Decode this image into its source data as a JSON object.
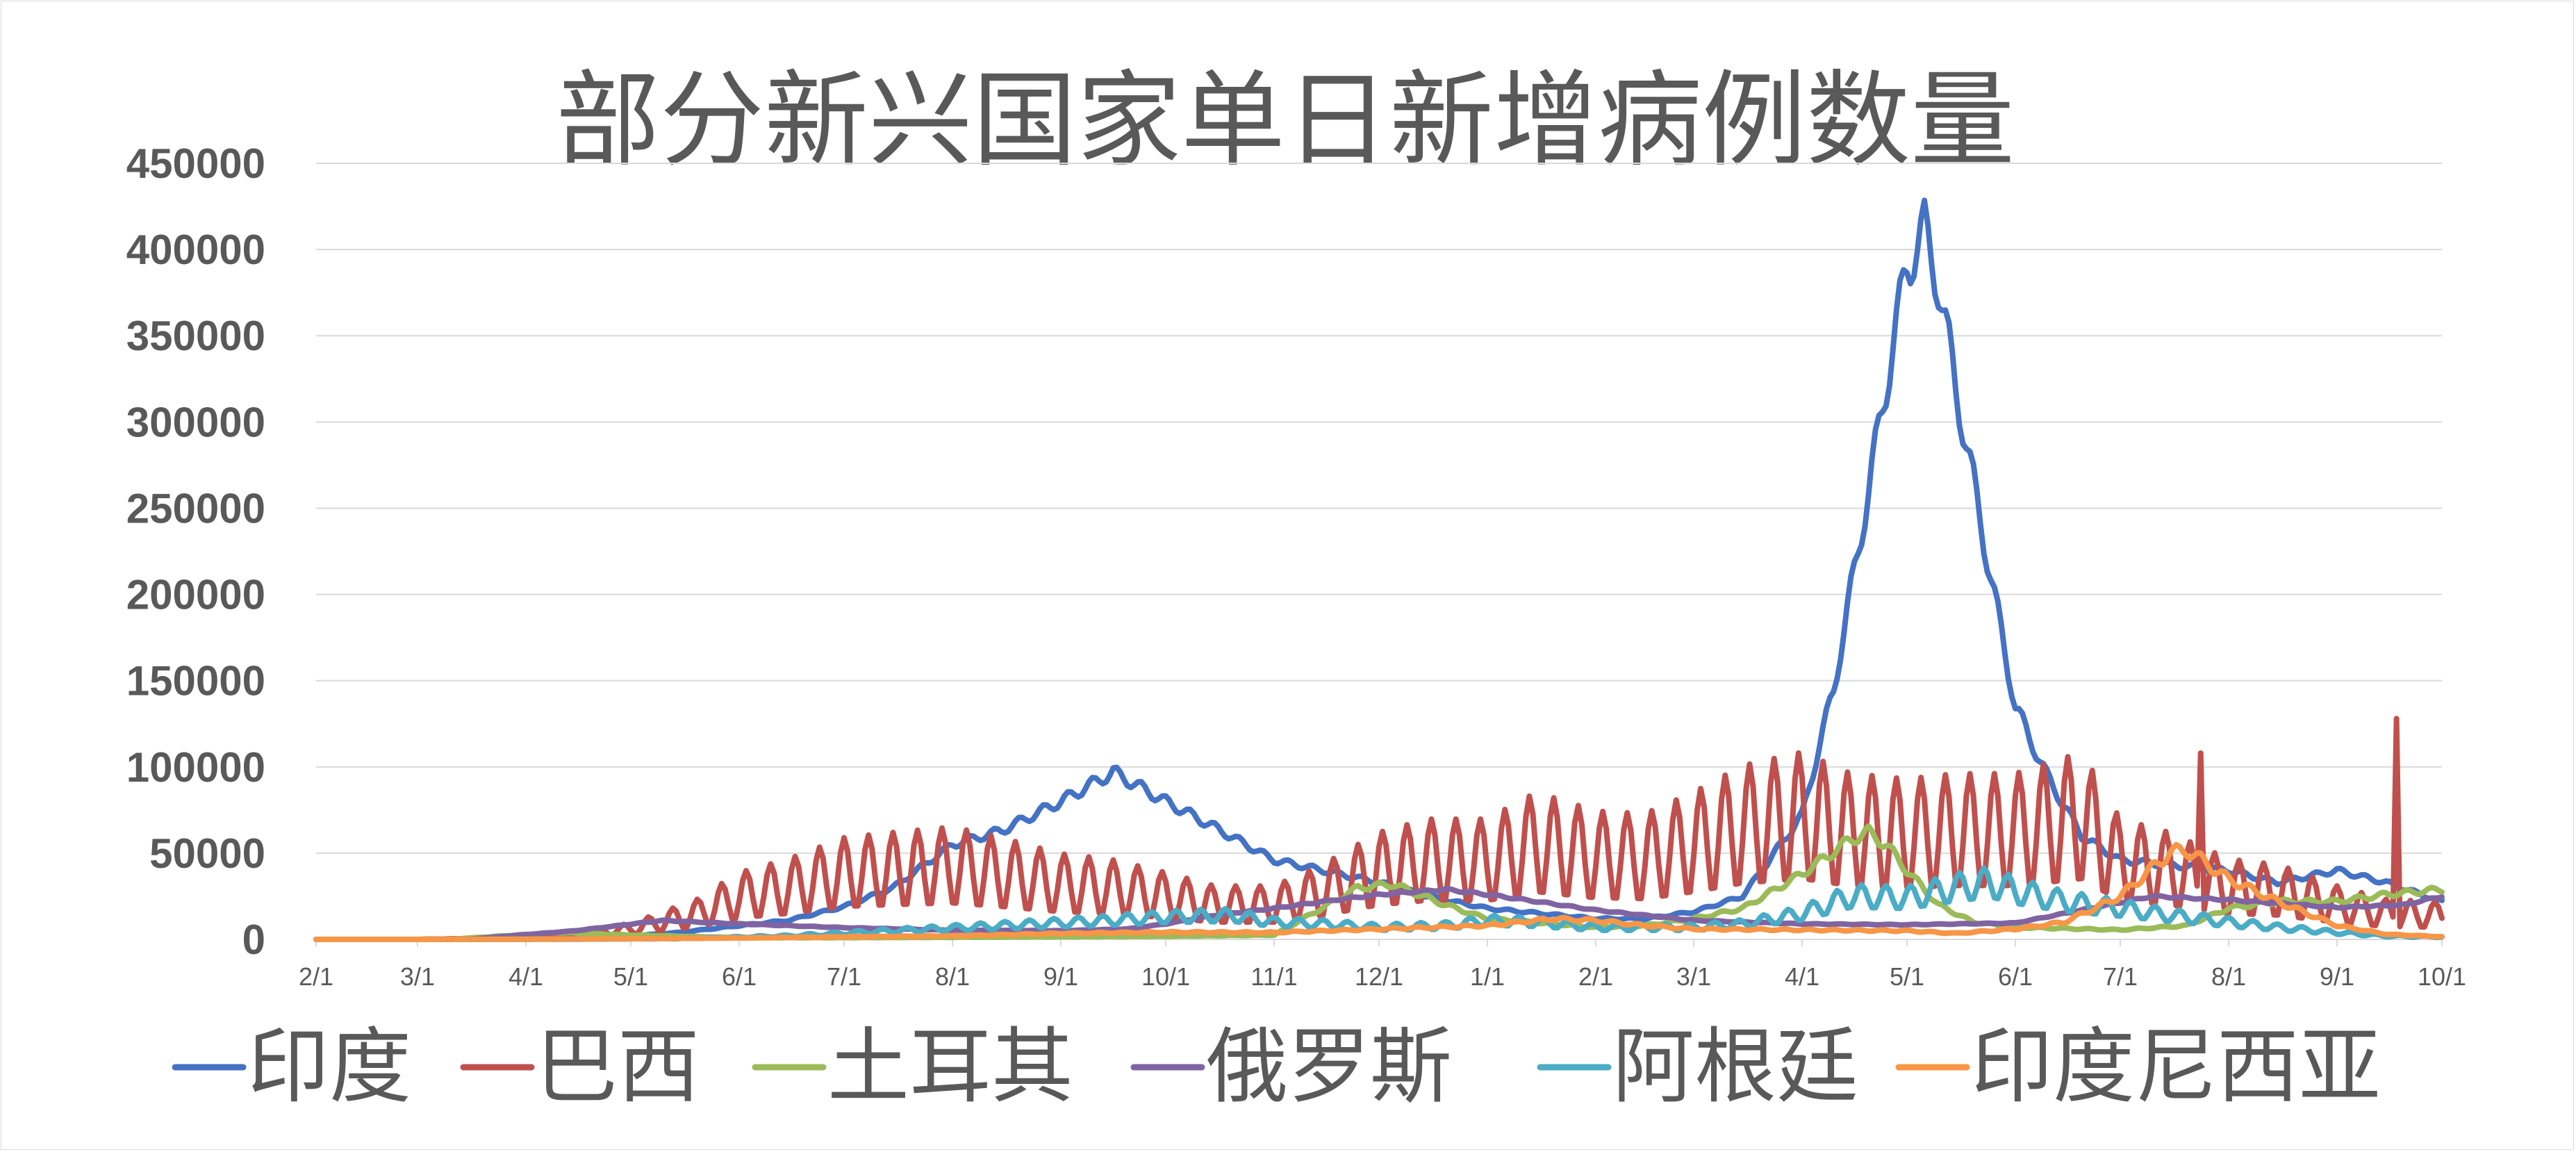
{
  "chart_data": {
    "type": "line",
    "title": "部分新兴国家单日新增病例数量",
    "xlabel": "",
    "ylabel": "",
    "ylim": [
      0,
      450000
    ],
    "y_ticks": [
      "0",
      "50000",
      "100000",
      "150000",
      "200000",
      "250000",
      "300000",
      "350000",
      "400000",
      "450000"
    ],
    "x_ticks": [
      "2/1",
      "3/1",
      "4/1",
      "5/1",
      "6/1",
      "7/1",
      "8/1",
      "9/1",
      "10/1",
      "11/1",
      "12/1",
      "1/1",
      "2/1",
      "3/1",
      "4/1",
      "5/1",
      "6/1",
      "7/1",
      "8/1",
      "9/1",
      "10/1"
    ],
    "x_range": [
      "2020-02-01",
      "2021-10-01"
    ],
    "grid": true,
    "legend_position": "bottom",
    "series": [
      {
        "name": "印度",
        "color": "#4472C4",
        "weekly_amplitude": 0.04,
        "points": [
          [
            "2020-02-01",
            0
          ],
          [
            "2020-03-01",
            0
          ],
          [
            "2020-03-25",
            500
          ],
          [
            "2020-04-15",
            1000
          ],
          [
            "2020-05-01",
            2000
          ],
          [
            "2020-05-15",
            4000
          ],
          [
            "2020-06-01",
            8000
          ],
          [
            "2020-06-15",
            11000
          ],
          [
            "2020-07-01",
            19000
          ],
          [
            "2020-07-15",
            30000
          ],
          [
            "2020-08-01",
            55000
          ],
          [
            "2020-08-15",
            63000
          ],
          [
            "2020-09-01",
            80000
          ],
          [
            "2020-09-16",
            97000
          ],
          [
            "2020-10-01",
            80000
          ],
          [
            "2020-10-15",
            65000
          ],
          [
            "2020-11-01",
            46000
          ],
          [
            "2020-11-15",
            40000
          ],
          [
            "2020-12-01",
            33000
          ],
          [
            "2020-12-15",
            25000
          ],
          [
            "2021-01-01",
            18000
          ],
          [
            "2021-02-01",
            12000
          ],
          [
            "2021-02-15",
            12000
          ],
          [
            "2021-03-01",
            16000
          ],
          [
            "2021-03-15",
            25000
          ],
          [
            "2021-04-01",
            72000
          ],
          [
            "2021-04-10",
            145000
          ],
          [
            "2021-04-20",
            260000
          ],
          [
            "2021-04-27",
            345000
          ],
          [
            "2021-05-01",
            390000
          ],
          [
            "2021-05-06",
            412000
          ],
          [
            "2021-05-10",
            380000
          ],
          [
            "2021-05-15",
            320000
          ],
          [
            "2021-05-20",
            265000
          ],
          [
            "2021-05-25",
            210000
          ],
          [
            "2021-06-01",
            135000
          ],
          [
            "2021-06-10",
            95000
          ],
          [
            "2021-06-20",
            60000
          ],
          [
            "2021-07-01",
            46000
          ],
          [
            "2021-08-01",
            40000
          ],
          [
            "2021-08-15",
            33000
          ],
          [
            "2021-09-01",
            40000
          ],
          [
            "2021-09-15",
            33000
          ],
          [
            "2021-10-01",
            22000
          ]
        ]
      },
      {
        "name": "巴西",
        "color": "#C0504D",
        "weekly_amplitude": 0.55,
        "spikes": [
          [
            "2021-07-24",
            108000
          ],
          [
            "2021-09-18",
            128000
          ]
        ],
        "points": [
          [
            "2020-02-01",
            0
          ],
          [
            "2020-03-01",
            0
          ],
          [
            "2020-03-20",
            500
          ],
          [
            "2020-04-10",
            2000
          ],
          [
            "2020-05-01",
            6000
          ],
          [
            "2020-05-20",
            15000
          ],
          [
            "2020-06-01",
            25000
          ],
          [
            "2020-06-15",
            30000
          ],
          [
            "2020-07-01",
            38000
          ],
          [
            "2020-07-15",
            40000
          ],
          [
            "2020-08-01",
            42000
          ],
          [
            "2020-08-15",
            38000
          ],
          [
            "2020-09-01",
            32000
          ],
          [
            "2020-09-15",
            30000
          ],
          [
            "2020-10-01",
            25000
          ],
          [
            "2020-10-15",
            20000
          ],
          [
            "2020-11-01",
            20000
          ],
          [
            "2020-11-15",
            28000
          ],
          [
            "2020-12-01",
            40000
          ],
          [
            "2020-12-15",
            45000
          ],
          [
            "2021-01-01",
            45000
          ],
          [
            "2021-01-15",
            55000
          ],
          [
            "2021-02-01",
            48000
          ],
          [
            "2021-02-15",
            47000
          ],
          [
            "2021-03-01",
            55000
          ],
          [
            "2021-03-15",
            65000
          ],
          [
            "2021-04-01",
            70000
          ],
          [
            "2021-04-15",
            62000
          ],
          [
            "2021-05-01",
            60000
          ],
          [
            "2021-05-15",
            62000
          ],
          [
            "2021-06-01",
            62000
          ],
          [
            "2021-06-20",
            70000
          ],
          [
            "2021-07-01",
            45000
          ],
          [
            "2021-07-15",
            40000
          ],
          [
            "2021-08-01",
            30000
          ],
          [
            "2021-08-15",
            28000
          ],
          [
            "2021-09-01",
            20000
          ],
          [
            "2021-09-15",
            15000
          ],
          [
            "2021-10-01",
            14000
          ]
        ]
      },
      {
        "name": "土耳其",
        "color": "#9BBB59",
        "weekly_amplitude": 0.06,
        "points": [
          [
            "2020-02-01",
            0
          ],
          [
            "2020-03-10",
            0
          ],
          [
            "2020-04-10",
            4000
          ],
          [
            "2020-05-01",
            2500
          ],
          [
            "2020-06-01",
            1000
          ],
          [
            "2020-07-01",
            1000
          ],
          [
            "2020-08-01",
            1200
          ],
          [
            "2020-09-01",
            1500
          ],
          [
            "2020-10-01",
            1800
          ],
          [
            "2020-11-01",
            2500
          ],
          [
            "2020-11-25",
            30000
          ],
          [
            "2020-12-05",
            32000
          ],
          [
            "2020-12-20",
            20000
          ],
          [
            "2021-01-01",
            12000
          ],
          [
            "2021-02-01",
            7000
          ],
          [
            "2021-02-15",
            8000
          ],
          [
            "2021-03-01",
            12000
          ],
          [
            "2021-03-15",
            18000
          ],
          [
            "2021-04-01",
            38000
          ],
          [
            "2021-04-15",
            58000
          ],
          [
            "2021-04-20",
            62000
          ],
          [
            "2021-04-25",
            55000
          ],
          [
            "2021-05-01",
            40000
          ],
          [
            "2021-05-10",
            20000
          ],
          [
            "2021-05-20",
            10000
          ],
          [
            "2021-06-01",
            7000
          ],
          [
            "2021-07-01",
            5500
          ],
          [
            "2021-07-20",
            8000
          ],
          [
            "2021-08-01",
            18000
          ],
          [
            "2021-08-15",
            22000
          ],
          [
            "2021-09-01",
            22000
          ],
          [
            "2021-09-15",
            26000
          ],
          [
            "2021-10-01",
            29000
          ]
        ]
      },
      {
        "name": "俄罗斯",
        "color": "#8064A2",
        "weekly_amplitude": 0.02,
        "points": [
          [
            "2020-02-01",
            0
          ],
          [
            "2020-03-15",
            0
          ],
          [
            "2020-04-15",
            5000
          ],
          [
            "2020-05-10",
            11000
          ],
          [
            "2020-06-01",
            9000
          ],
          [
            "2020-07-01",
            6800
          ],
          [
            "2020-08-01",
            5300
          ],
          [
            "2020-09-01",
            5000
          ],
          [
            "2020-09-20",
            6000
          ],
          [
            "2020-10-01",
            9000
          ],
          [
            "2020-10-15",
            14000
          ],
          [
            "2020-11-01",
            18000
          ],
          [
            "2020-11-15",
            22000
          ],
          [
            "2020-12-01",
            26000
          ],
          [
            "2020-12-20",
            29000
          ],
          [
            "2021-01-01",
            26000
          ],
          [
            "2021-01-15",
            22000
          ],
          [
            "2021-02-01",
            17000
          ],
          [
            "2021-02-15",
            14000
          ],
          [
            "2021-03-01",
            11000
          ],
          [
            "2021-04-01",
            9000
          ],
          [
            "2021-05-01",
            8500
          ],
          [
            "2021-06-01",
            9500
          ],
          [
            "2021-06-20",
            17000
          ],
          [
            "2021-07-10",
            25000
          ],
          [
            "2021-08-01",
            23000
          ],
          [
            "2021-09-01",
            18500
          ],
          [
            "2021-09-20",
            20000
          ],
          [
            "2021-10-01",
            25000
          ]
        ]
      },
      {
        "name": "阿根廷",
        "color": "#4BACC6",
        "weekly_amplitude": 0.28,
        "points": [
          [
            "2020-02-01",
            0
          ],
          [
            "2020-03-15",
            0
          ],
          [
            "2020-04-15",
            100
          ],
          [
            "2020-05-15",
            500
          ],
          [
            "2020-06-15",
            2000
          ],
          [
            "2020-07-15",
            5000
          ],
          [
            "2020-08-15",
            8000
          ],
          [
            "2020-09-15",
            11000
          ],
          [
            "2020-10-01",
            13000
          ],
          [
            "2020-10-20",
            14000
          ],
          [
            "2020-11-01",
            10000
          ],
          [
            "2020-11-15",
            9000
          ],
          [
            "2020-12-01",
            7000
          ],
          [
            "2020-12-20",
            8000
          ],
          [
            "2021-01-01",
            11000
          ],
          [
            "2021-01-15",
            10000
          ],
          [
            "2021-02-01",
            7000
          ],
          [
            "2021-03-01",
            7000
          ],
          [
            "2021-03-15",
            9000
          ],
          [
            "2021-04-01",
            15000
          ],
          [
            "2021-04-15",
            25000
          ],
          [
            "2021-05-01",
            24000
          ],
          [
            "2021-05-15",
            30000
          ],
          [
            "2021-05-25",
            33000
          ],
          [
            "2021-06-01",
            28000
          ],
          [
            "2021-06-15",
            22000
          ],
          [
            "2021-07-01",
            18000
          ],
          [
            "2021-07-15",
            14000
          ],
          [
            "2021-08-01",
            10000
          ],
          [
            "2021-08-15",
            7000
          ],
          [
            "2021-09-01",
            4000
          ],
          [
            "2021-09-15",
            2000
          ],
          [
            "2021-10-01",
            1500
          ]
        ]
      },
      {
        "name": "印度尼西亚",
        "color": "#F79646",
        "weekly_amplitude": 0.08,
        "points": [
          [
            "2020-02-01",
            0
          ],
          [
            "2020-03-01",
            0
          ],
          [
            "2020-04-01",
            150
          ],
          [
            "2020-05-01",
            400
          ],
          [
            "2020-06-01",
            800
          ],
          [
            "2020-07-01",
            1500
          ],
          [
            "2020-08-01",
            2000
          ],
          [
            "2020-09-01",
            3500
          ],
          [
            "2020-10-01",
            4200
          ],
          [
            "2020-11-01",
            4000
          ],
          [
            "2020-12-01",
            6000
          ],
          [
            "2021-01-01",
            8000
          ],
          [
            "2021-01-20",
            12000
          ],
          [
            "2021-02-01",
            11000
          ],
          [
            "2021-02-15",
            8000
          ],
          [
            "2021-03-01",
            6000
          ],
          [
            "2021-04-01",
            5500
          ],
          [
            "2021-05-01",
            5000
          ],
          [
            "2021-05-15",
            3500
          ],
          [
            "2021-06-01",
            6000
          ],
          [
            "2021-06-15",
            10000
          ],
          [
            "2021-07-01",
            25000
          ],
          [
            "2021-07-15",
            50000
          ],
          [
            "2021-07-20",
            52000
          ],
          [
            "2021-08-01",
            35000
          ],
          [
            "2021-08-15",
            22000
          ],
          [
            "2021-09-01",
            8000
          ],
          [
            "2021-09-15",
            3000
          ],
          [
            "2021-10-01",
            1500
          ]
        ]
      }
    ]
  }
}
